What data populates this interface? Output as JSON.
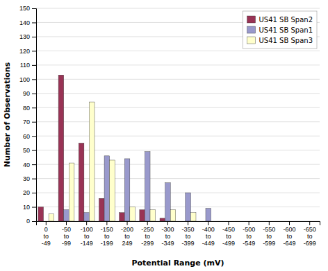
{
  "chart_data": {
    "type": "bar",
    "categories": [
      "0\nto\n-49",
      "-50\nto\n-99",
      "-100\nto\n-149",
      "-150\nto\n-199",
      "-200\nto\n249",
      "-250\nto\n-299",
      "-300\nto\n-349",
      "-350\nto\n-399",
      "-400\nto\n-449",
      "-450\nto\n-499",
      "-500\nto\n-549",
      "-550\nto\n-599",
      "-600\nto\n-649",
      "-650\nto\n-699"
    ],
    "series": [
      {
        "name": "US41 SB Span2",
        "color": "#993355",
        "values": [
          10,
          103,
          55,
          16,
          6,
          8,
          2,
          0,
          0,
          0,
          0,
          0,
          0,
          0
        ]
      },
      {
        "name": "US41 SB Span1",
        "color": "#9999CC",
        "values": [
          0,
          8,
          6,
          46,
          44,
          49,
          27,
          20,
          9,
          0,
          0,
          0,
          0,
          0
        ]
      },
      {
        "name": "US41 SB Span3",
        "color": "#FFFFCC",
        "values": [
          5,
          41,
          84,
          43,
          10,
          8,
          8,
          6,
          0,
          0,
          0,
          0,
          0,
          0
        ]
      }
    ],
    "xlabel": "Potential Range (mV)",
    "ylabel": "Number of Observations",
    "ylim": [
      0,
      150
    ],
    "yticks": [
      0,
      10,
      20,
      30,
      40,
      50,
      60,
      70,
      80,
      90,
      100,
      110,
      120,
      130,
      140,
      150
    ],
    "grid": true,
    "legend": "upper-right"
  }
}
